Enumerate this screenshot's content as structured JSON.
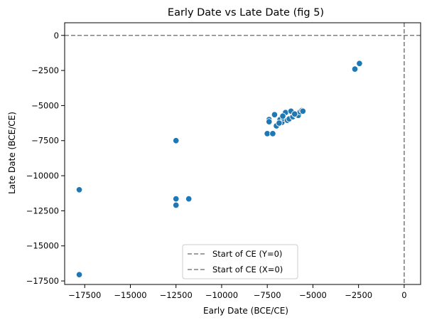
{
  "chart_data": {
    "type": "scatter",
    "title": "Early Date vs Late Date (fig 5)",
    "xlabel": "Early Date (BCE/CE)",
    "ylabel": "Late Date (BCE/CE)",
    "xlim": [
      -18600,
      900
    ],
    "ylim": [
      -17750,
      900
    ],
    "xticks": [
      -17500,
      -15000,
      -12500,
      -10000,
      -7500,
      -5000,
      -2500,
      0
    ],
    "yticks": [
      0,
      -2500,
      -5000,
      -7500,
      -10000,
      -12500,
      -15000,
      -17500
    ],
    "xtick_labels": [
      "−17500",
      "−15000",
      "−12500",
      "−10000",
      "−7500",
      "−5000",
      "−2500",
      "0"
    ],
    "ytick_labels": [
      "0",
      "−2500",
      "−5000",
      "−7500",
      "−10000",
      "−12500",
      "−15000",
      "−17500"
    ],
    "grid": false,
    "legend_position": "lower center",
    "legend": [
      {
        "label": "Start of CE (Y=0)",
        "style": "dashed",
        "color": "#808080"
      },
      {
        "label": "Start of CE (X=0)",
        "style": "dashed",
        "color": "#808080"
      }
    ],
    "reference_lines": [
      {
        "orientation": "horizontal",
        "value": 0,
        "style": "dashed",
        "color": "#808080"
      },
      {
        "orientation": "vertical",
        "value": 0,
        "style": "dashed",
        "color": "#808080"
      }
    ],
    "marker_color": "#1f77b4",
    "points": [
      {
        "x": -17800,
        "y": -11000
      },
      {
        "x": -17800,
        "y": -17050
      },
      {
        "x": -12500,
        "y": -7500
      },
      {
        "x": -12500,
        "y": -11650
      },
      {
        "x": -12500,
        "y": -12100
      },
      {
        "x": -11800,
        "y": -11650
      },
      {
        "x": -2700,
        "y": -2400
      },
      {
        "x": -2450,
        "y": -2000
      },
      {
        "x": -7500,
        "y": -7000
      },
      {
        "x": -7200,
        "y": -7000
      },
      {
        "x": -7400,
        "y": -6000
      },
      {
        "x": -7400,
        "y": -6150
      },
      {
        "x": -7100,
        "y": -5650
      },
      {
        "x": -7000,
        "y": -6450
      },
      {
        "x": -6800,
        "y": -6000
      },
      {
        "x": -6700,
        "y": -6200
      },
      {
        "x": -6600,
        "y": -5900
      },
      {
        "x": -6500,
        "y": -5500
      },
      {
        "x": -6400,
        "y": -6050
      },
      {
        "x": -6300,
        "y": -5950
      },
      {
        "x": -6200,
        "y": -5400
      },
      {
        "x": -6100,
        "y": -5800
      },
      {
        "x": -5950,
        "y": -5650
      },
      {
        "x": -5800,
        "y": -5700
      },
      {
        "x": -5700,
        "y": -5450
      },
      {
        "x": -5600,
        "y": -5350
      },
      {
        "x": -5550,
        "y": -5400
      },
      {
        "x": -6000,
        "y": -5600
      },
      {
        "x": -6650,
        "y": -5750
      },
      {
        "x": -6850,
        "y": -6250
      }
    ]
  }
}
